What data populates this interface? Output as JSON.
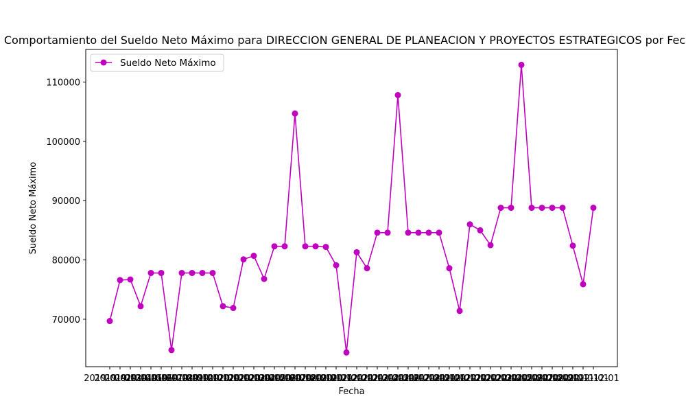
{
  "chart_data": {
    "type": "line",
    "title": "Comportamiento del Sueldo Neto Máximo para DIRECCION GENERAL DE PLANEACION Y PROYECTOS ESTRATEGICOS por Fecha",
    "xlabel": "Fecha",
    "ylabel": "Sueldo Neto Máximo",
    "ylim": [
      62000,
      115500
    ],
    "yticks": [
      70000,
      80000,
      90000,
      100000,
      110000
    ],
    "grid": false,
    "legend_position": "upper-left",
    "series": [
      {
        "name": "Sueldo Neto Máximo",
        "color": "#bf00bf",
        "marker": "circle",
        "values": [
          69700,
          76600,
          76700,
          72200,
          77800,
          77800,
          64800,
          77800,
          77800,
          77800,
          77800,
          72200,
          71900,
          80100,
          80700,
          76800,
          82300,
          82300,
          104700,
          82300,
          82300,
          82200,
          79100,
          64400,
          81300,
          78600,
          84600,
          84600,
          107800,
          84600,
          84600,
          84600,
          84600,
          78600,
          71400,
          86000,
          85000,
          82500,
          88800,
          88800,
          112900,
          88800,
          88800,
          88800,
          88800,
          82400,
          75900,
          88800
        ]
      }
    ],
    "x_tick_labels": [
      "2019-01-01",
      "2019-02-01",
      "2019-03-01",
      "2019-04-01",
      "2019-05-01",
      "2019-06-01",
      "2019-07-01",
      "2019-08-01",
      "2019-09-01",
      "2019-10-01",
      "2019-11-01",
      "2019-12-01",
      "2020-01-01",
      "2020-02-01",
      "2020-03-01",
      "2020-04-01",
      "2020-05-01",
      "2020-06-01",
      "2020-07-01",
      "2020-08-01",
      "2020-09-01",
      "2020-10-01",
      "2020-11-01",
      "2020-12-01",
      "2021-01-01",
      "2021-02-01",
      "2021-03-01",
      "2021-04-01",
      "2021-05-01",
      "2021-06-01",
      "2021-07-01",
      "2021-08-01",
      "2021-09-01",
      "2021-10-01",
      "2021-11-01",
      "2021-12-01",
      "2022-01-01",
      "2022-02-01",
      "2022-03-01",
      "2022-04-01",
      "2022-05-01",
      "2022-06-01",
      "2022-07-01",
      "2022-08-01",
      "2022-09-01",
      "2022-10-01",
      "2022-11-01",
      "2022-12-01"
    ]
  }
}
